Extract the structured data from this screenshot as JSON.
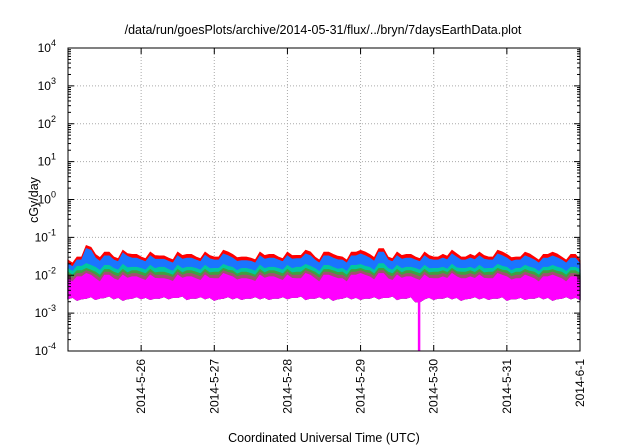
{
  "chart_data": {
    "type": "line",
    "title": "/data/run/goesPlots/archive/2014-05-31/flux/../bryn/7daysEarthData.plot",
    "xlabel": "Coordinated Universal Time (UTC)",
    "ylabel": "cGy/day",
    "yscale": "log",
    "ylim": [
      0.0001,
      10000
    ],
    "y_ticks": [
      {
        "base": "10",
        "exp": "4",
        "value": 10000
      },
      {
        "base": "10",
        "exp": "3",
        "value": 1000
      },
      {
        "base": "10",
        "exp": "2",
        "value": 100
      },
      {
        "base": "10",
        "exp": "1",
        "value": 10
      },
      {
        "base": "10",
        "exp": "0",
        "value": 1
      },
      {
        "base": "10",
        "exp": "-1",
        "value": 0.1
      },
      {
        "base": "10",
        "exp": "-2",
        "value": 0.01
      },
      {
        "base": "10",
        "exp": "-3",
        "value": 0.001
      },
      {
        "base": "10",
        "exp": "-4",
        "value": 0.0001
      }
    ],
    "xlim_days_since_start": [
      0,
      7
    ],
    "x_start": "2014-05-25 00:00",
    "x_ticks": [
      {
        "label": "2014-5-26",
        "day": 1
      },
      {
        "label": "2014-5-27",
        "day": 2
      },
      {
        "label": "2014-5-28",
        "day": 3
      },
      {
        "label": "2014-5-29",
        "day": 4
      },
      {
        "label": "2014-5-30",
        "day": 5
      },
      {
        "label": "2014-5-31",
        "day": 6
      },
      {
        "label": "2014-6-1",
        "day": 7
      }
    ],
    "grid": true,
    "bin_hours": 3,
    "series": [
      {
        "name": "series-red",
        "color": "#ff0000",
        "max": [
          0.025,
          0.03,
          0.06,
          0.035,
          0.04,
          0.03,
          0.045,
          0.035,
          0.03,
          0.04,
          0.032,
          0.028,
          0.04,
          0.035,
          0.03,
          0.04,
          0.03,
          0.045,
          0.035,
          0.03,
          0.028,
          0.04,
          0.035,
          0.03,
          0.04,
          0.033,
          0.045,
          0.03,
          0.04,
          0.035,
          0.03,
          0.04,
          0.045,
          0.035,
          0.05,
          0.03,
          0.04,
          0.035,
          0.03,
          0.04,
          0.03,
          0.035,
          0.045,
          0.03,
          0.035,
          0.04,
          0.03,
          0.045,
          0.035,
          0.03,
          0.04,
          0.03,
          0.035,
          0.04,
          0.03,
          0.035,
          0.025
        ]
      },
      {
        "name": "series-blue",
        "color": "#1a75ff",
        "max": [
          0.02,
          0.025,
          0.05,
          0.028,
          0.032,
          0.025,
          0.038,
          0.028,
          0.025,
          0.032,
          0.026,
          0.023,
          0.032,
          0.028,
          0.025,
          0.033,
          0.025,
          0.036,
          0.028,
          0.024,
          0.023,
          0.032,
          0.028,
          0.025,
          0.032,
          0.027,
          0.036,
          0.025,
          0.032,
          0.028,
          0.025,
          0.032,
          0.036,
          0.028,
          0.04,
          0.025,
          0.032,
          0.028,
          0.025,
          0.032,
          0.025,
          0.028,
          0.036,
          0.025,
          0.028,
          0.032,
          0.025,
          0.036,
          0.028,
          0.025,
          0.032,
          0.025,
          0.028,
          0.032,
          0.025,
          0.028,
          0.02
        ]
      },
      {
        "name": "series-cyan",
        "color": "#00c8a0",
        "max": [
          0.015,
          0.017,
          0.02,
          0.016,
          0.018,
          0.015,
          0.019,
          0.016,
          0.015,
          0.018,
          0.016,
          0.014,
          0.018,
          0.016,
          0.015,
          0.018,
          0.015,
          0.019,
          0.016,
          0.015,
          0.014,
          0.018,
          0.016,
          0.015,
          0.018,
          0.016,
          0.019,
          0.015,
          0.018,
          0.016,
          0.015,
          0.018,
          0.019,
          0.016,
          0.02,
          0.015,
          0.018,
          0.016,
          0.015,
          0.018,
          0.015,
          0.016,
          0.019,
          0.015,
          0.016,
          0.018,
          0.015,
          0.019,
          0.016,
          0.015,
          0.018,
          0.015,
          0.016,
          0.018,
          0.015,
          0.016,
          0.014
        ]
      },
      {
        "name": "series-green",
        "color": "#40a040",
        "max": [
          0.012,
          0.013,
          0.015,
          0.012,
          0.014,
          0.012,
          0.014,
          0.013,
          0.012,
          0.014,
          0.012,
          0.011,
          0.014,
          0.013,
          0.012,
          0.014,
          0.012,
          0.015,
          0.013,
          0.012,
          0.011,
          0.014,
          0.013,
          0.012,
          0.014,
          0.012,
          0.015,
          0.012,
          0.014,
          0.013,
          0.012,
          0.014,
          0.015,
          0.013,
          0.015,
          0.012,
          0.014,
          0.013,
          0.012,
          0.014,
          0.012,
          0.013,
          0.015,
          0.012,
          0.013,
          0.014,
          0.012,
          0.015,
          0.013,
          0.012,
          0.014,
          0.012,
          0.013,
          0.014,
          0.012,
          0.013,
          0.011
        ]
      },
      {
        "name": "series-brown",
        "color": "#a05070",
        "max": [
          0.01,
          0.011,
          0.013,
          0.01,
          0.012,
          0.01,
          0.012,
          0.011,
          0.01,
          0.012,
          0.01,
          0.0095,
          0.012,
          0.011,
          0.01,
          0.012,
          0.01,
          0.013,
          0.011,
          0.01,
          0.0095,
          0.012,
          0.011,
          0.01,
          0.012,
          0.01,
          0.013,
          0.01,
          0.012,
          0.011,
          0.01,
          0.012,
          0.013,
          0.011,
          0.013,
          0.01,
          0.012,
          0.011,
          0.01,
          0.012,
          0.01,
          0.011,
          0.013,
          0.01,
          0.011,
          0.012,
          0.01,
          0.013,
          0.011,
          0.01,
          0.012,
          0.01,
          0.011,
          0.012,
          0.01,
          0.011,
          0.0095
        ]
      },
      {
        "name": "series-magenta",
        "color": "#ff00ff",
        "max": [
          0.008,
          0.009,
          0.011,
          0.008,
          0.01,
          0.008,
          0.01,
          0.009,
          0.008,
          0.01,
          0.008,
          0.0075,
          0.01,
          0.009,
          0.008,
          0.01,
          0.008,
          0.011,
          0.009,
          0.008,
          0.0075,
          0.01,
          0.009,
          0.008,
          0.01,
          0.008,
          0.011,
          0.008,
          0.01,
          0.009,
          0.008,
          0.01,
          0.011,
          0.009,
          0.011,
          0.008,
          0.01,
          0.009,
          0.008,
          0.01,
          0.008,
          0.009,
          0.011,
          0.008,
          0.009,
          0.01,
          0.008,
          0.011,
          0.009,
          0.008,
          0.01,
          0.008,
          0.009,
          0.01,
          0.008,
          0.009,
          0.0075
        ],
        "min": [
          0.0024,
          0.0022,
          0.0025,
          0.0023,
          0.0026,
          0.0024,
          0.0022,
          0.0025,
          0.0024,
          0.0023,
          0.0025,
          0.0024,
          0.0026,
          0.0023,
          0.0025,
          0.0024,
          0.0022,
          0.0025,
          0.0024,
          0.0023,
          0.0025,
          0.0024,
          0.0023,
          0.0025,
          0.0024,
          0.0026,
          0.0023,
          0.0025,
          0.0024,
          0.0022,
          0.0025,
          0.0024,
          0.0023,
          0.0025,
          0.0024,
          0.0026,
          0.0023,
          0.0025,
          8e-05,
          0.0024,
          0.0023,
          0.0025,
          0.0024,
          0.0022,
          0.0025,
          0.0024,
          0.0023,
          0.0025,
          0.0022,
          0.0024,
          0.0023,
          0.0025,
          0.0024,
          0.0022,
          0.0025,
          0.0024,
          0.0023
        ]
      }
    ]
  }
}
